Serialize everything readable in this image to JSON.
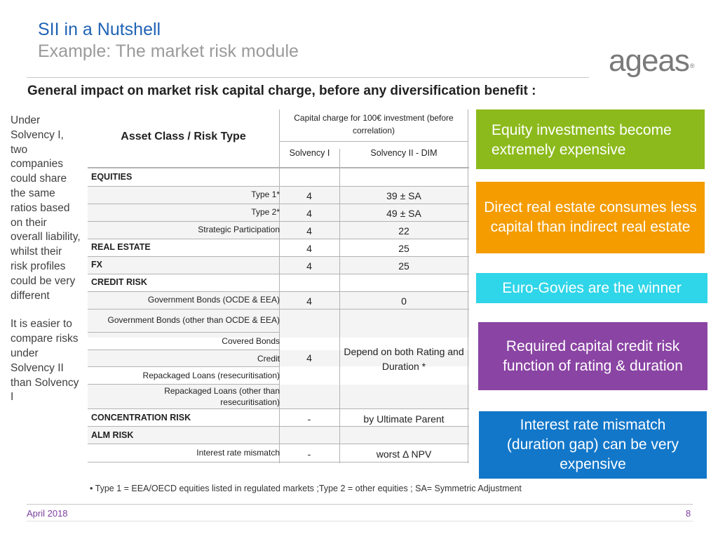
{
  "header": {
    "title": "SII in a Nutshell",
    "subtitle": "Example: The market risk module",
    "logo_text": "ageas",
    "logo_mark": "®"
  },
  "subhead": "General impact on market risk capital charge, before any diversification benefit :",
  "left_text": {
    "para1": "Under Solvency I, two companies could share the same ratios based on their overall liability, whilst their risk profiles could be very different",
    "para2": "It is easier to compare risks under Solvency II than Solvency I"
  },
  "table": {
    "header_asset": "Asset Class / Risk Type",
    "header_capital": "Capital charge for 100€ investment (before correlation)",
    "header_s1": "Solvency I",
    "header_s2": "Solvency II - DIM",
    "rows": {
      "equities": "EQUITIES",
      "type1": {
        "label": "Type 1*",
        "s1": "4",
        "s2": "39 ± SA"
      },
      "type2": {
        "label": "Type 2*",
        "s1": "4",
        "s2": "49 ± SA"
      },
      "strategic": {
        "label": "Strategic Participation",
        "s1": "4",
        "s2": "22"
      },
      "real_estate": {
        "label": "REAL ESTATE",
        "s1": "4",
        "s2": "25"
      },
      "fx": {
        "label": "FX",
        "s1": "4",
        "s2": "25"
      },
      "credit_risk": "CREDIT RISK",
      "gov_ocde": {
        "label": "Government Bonds (OCDE & EEA)",
        "s1": "4",
        "s2": "0"
      },
      "gov_other": {
        "label": "Government Bonds (other than OCDE & EEA)"
      },
      "covered": {
        "label": "Covered Bonds"
      },
      "credit": {
        "label": "Credit"
      },
      "repack_resec": {
        "label": "Repackaged Loans (resecuritisation)"
      },
      "repack_other_l1": "Repackaged Loans (other than",
      "repack_other_l2": "resecuritisation)",
      "credit_group_s1": "4",
      "credit_group_s2": "Depend on both Rating and Duration *",
      "concentration": {
        "label": "CONCENTRATION RISK",
        "s1": "-",
        "s2": "by Ultimate Parent"
      },
      "alm": "ALM RISK",
      "ir_mismatch": {
        "label": "Interest rate mismatch",
        "s1": "-",
        "s2": "worst Δ NPV"
      }
    }
  },
  "callouts": {
    "equity": "Equity investments become extremely expensive",
    "real_estate": "Direct real estate consumes less capital than indirect real estate",
    "govies": "Euro-Govies are the winner",
    "credit": "Required capital credit risk function of rating & duration",
    "interest": "Interest rate mismatch (duration gap) can be very expensive"
  },
  "colors": {
    "equity_box": "#8cba1c",
    "real_estate_box": "#f49c00",
    "govies_box": "#2fd5e8",
    "credit_box": "#8a44a3",
    "interest_box": "#1277c9",
    "title": "#1f63b5",
    "footer": "#7b3f9e"
  },
  "footnote": "• Type 1 = EEA/OECD equities listed in regulated markets ;Type 2 = other equities  ; SA= Symmetric Adjustment",
  "footer": {
    "date": "April 2018",
    "page": "8"
  }
}
